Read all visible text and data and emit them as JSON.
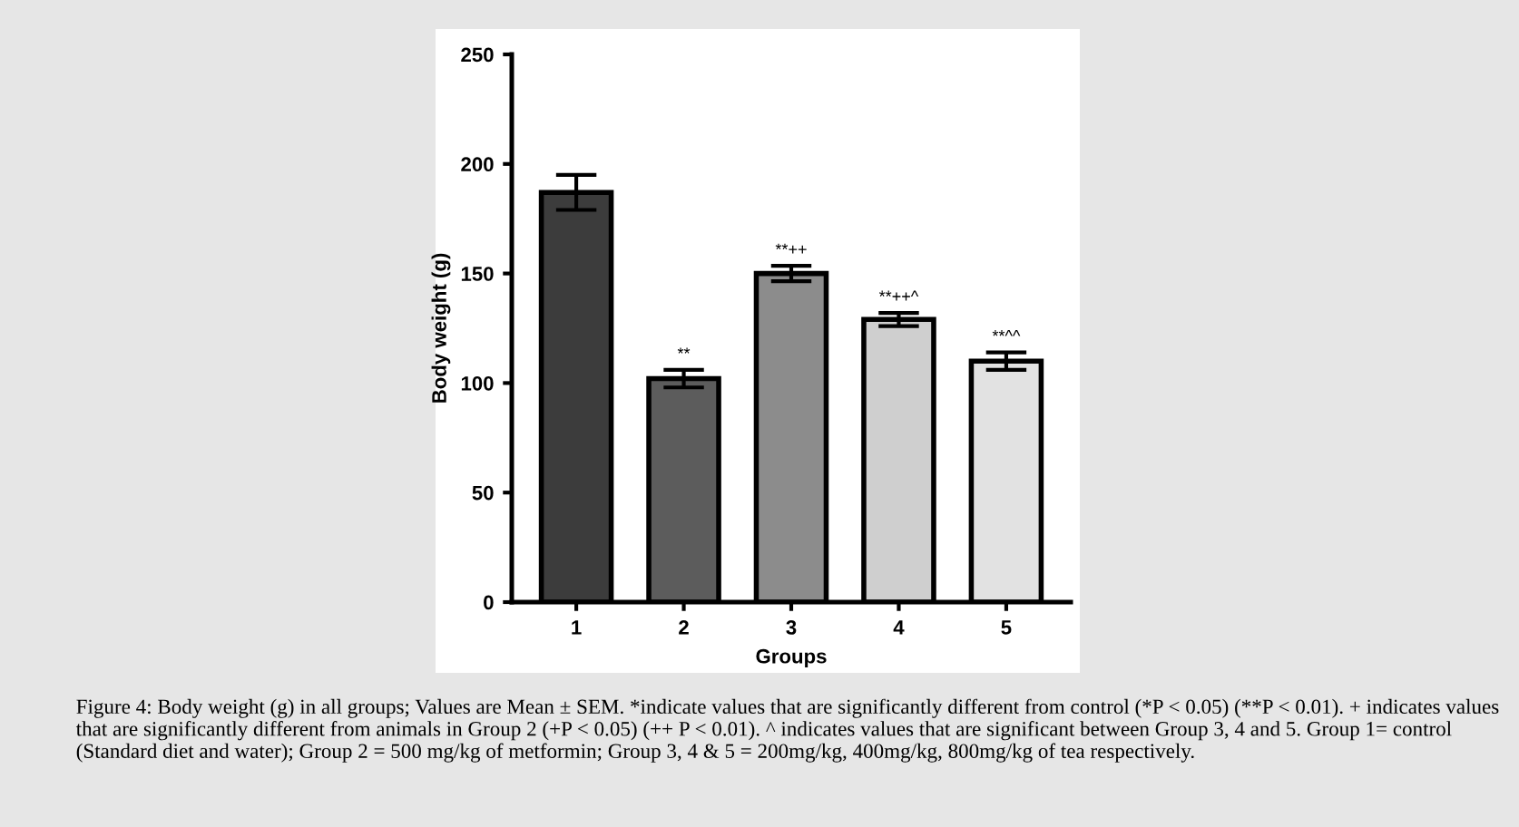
{
  "chart_data": {
    "type": "bar",
    "xlabel": "Groups",
    "ylabel": "Body weight (g)",
    "categories": [
      "1",
      "2",
      "3",
      "4",
      "5"
    ],
    "values": [
      187,
      102,
      150,
      129,
      110
    ],
    "errors": [
      8,
      4,
      3.5,
      3,
      4
    ],
    "colors": [
      "#3c3c3c",
      "#5c5c5c",
      "#8c8c8c",
      "#cfcfcf",
      "#e2e2e2"
    ],
    "ylim": [
      0,
      250
    ],
    "yticks": [
      0,
      50,
      100,
      150,
      200,
      250
    ],
    "grid": false,
    "legend": false,
    "annotations": [
      {
        "text": "**",
        "x": "2",
        "y": 106
      },
      {
        "text": "**++",
        "x": "3",
        "y": 153.5
      },
      {
        "text": "**++^",
        "x": "4",
        "y": 132
      },
      {
        "text": "**^^",
        "x": "5",
        "y": 114
      },
      "Figure 4: Body weight (g) in all groups; Values are Mean ± SEM. *indicate values that are significantly different from control (*P < 0.05) (**P < 0.01). + indicates values that are significantly different from animals in Group 2 (+P < 0.05) (++ P < 0.01). ^ indicates values that are significant between Group 3, 4 and 5. Group 1= control (Standard diet and water); Group 2 = 500 mg/kg of metformin; Group 3, 4 & 5 = 200mg/kg, 400mg/kg, 800mg/kg of tea respectively."
    ]
  }
}
